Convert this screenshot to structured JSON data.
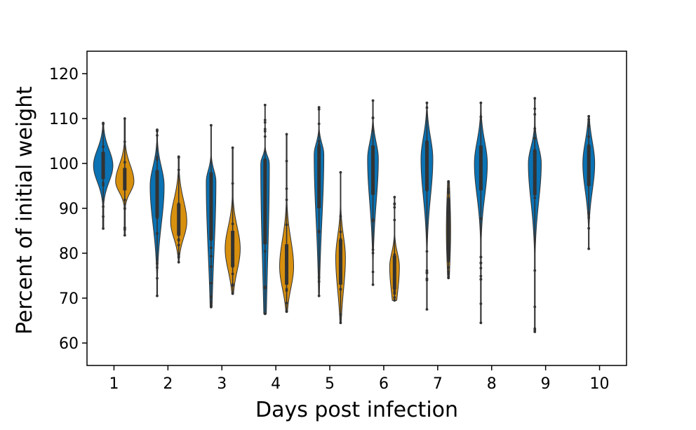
{
  "chart_data": {
    "type": "violin",
    "xlabel": "Days post infection",
    "ylabel": "Percent of initial weight",
    "ylim": [
      55,
      125
    ],
    "yticks": [
      60,
      70,
      80,
      90,
      100,
      110,
      120
    ],
    "categories": [
      "1",
      "2",
      "3",
      "4",
      "5",
      "6",
      "7",
      "8",
      "9",
      "10"
    ],
    "grid": false,
    "legend": "none",
    "series": [
      {
        "color": "#0b72b3",
        "distributions": [
          {
            "day": "1",
            "min": 85.5,
            "q1": 96.5,
            "median": 99.5,
            "q3": 102.5,
            "max": 109,
            "mode": 99.5,
            "spread": 0.9
          },
          {
            "day": "2",
            "min": 70.5,
            "q1": 88.0,
            "median": 94.0,
            "q3": 98.5,
            "max": 107.5,
            "mode": 95,
            "spread": 0.65
          },
          {
            "day": "3",
            "min": 68.0,
            "q1": 83.0,
            "median": 92.0,
            "q3": 98.0,
            "max": 108.5,
            "mode": 96,
            "spread": 0.45
          },
          {
            "day": "4",
            "min": 66.5,
            "q1": 82.0,
            "median": 93.0,
            "q3": 101.0,
            "max": 113.0,
            "mode": 100,
            "spread": 0.4
          },
          {
            "day": "5",
            "min": 70.5,
            "q1": 90.0,
            "median": 99.0,
            "q3": 104.0,
            "max": 112.5,
            "mode": 102,
            "spread": 0.45
          },
          {
            "day": "6",
            "min": 73.0,
            "q1": 93.0,
            "median": 99.0,
            "q3": 104.0,
            "max": 114.0,
            "mode": 101,
            "spread": 0.5
          },
          {
            "day": "7",
            "min": 67.5,
            "q1": 94.0,
            "median": 100.0,
            "q3": 105.0,
            "max": 113.5,
            "mode": 101,
            "spread": 0.55
          },
          {
            "day": "8",
            "min": 64.5,
            "q1": 94.0,
            "median": 99.5,
            "q3": 104.0,
            "max": 113.5,
            "mode": 100,
            "spread": 0.6
          },
          {
            "day": "9",
            "min": 62.5,
            "q1": 93.0,
            "median": 98.0,
            "q3": 103.0,
            "max": 114.5,
            "mode": 100,
            "spread": 0.6
          },
          {
            "day": "10",
            "min": 81.0,
            "q1": 95.0,
            "median": 99.0,
            "q3": 104.0,
            "max": 110.5,
            "mode": 100,
            "spread": 0.55
          }
        ]
      },
      {
        "color": "#d8900f",
        "distributions": [
          {
            "day": "1",
            "min": 84.0,
            "q1": 94.0,
            "median": 96.5,
            "q3": 99.0,
            "max": 110.0,
            "mode": 96,
            "spread": 0.85
          },
          {
            "day": "2",
            "min": 78.0,
            "q1": 84.0,
            "median": 87.5,
            "q3": 91.0,
            "max": 101.5,
            "mode": 87,
            "spread": 0.75
          },
          {
            "day": "3",
            "min": 71.0,
            "q1": 77.0,
            "median": 81.0,
            "q3": 85.0,
            "max": 103.5,
            "mode": 81,
            "spread": 0.7
          },
          {
            "day": "4",
            "min": 67.0,
            "q1": 73.0,
            "median": 77.5,
            "q3": 82.0,
            "max": 106.5,
            "mode": 77,
            "spread": 0.65
          },
          {
            "day": "5",
            "min": 64.5,
            "q1": 73.0,
            "median": 78.0,
            "q3": 83.0,
            "max": 98.0,
            "mode": 79,
            "spread": 0.45
          },
          {
            "day": "6",
            "min": 69.5,
            "q1": 72.0,
            "median": 76.5,
            "q3": 79.5,
            "max": 92.5,
            "mode": 77,
            "spread": 0.45
          },
          {
            "day": "7",
            "min": 74.5,
            "q1": 78.5,
            "median": 85.0,
            "q3": 92.0,
            "max": 96.0,
            "mode": 85,
            "spread": 0.2
          }
        ]
      }
    ]
  }
}
